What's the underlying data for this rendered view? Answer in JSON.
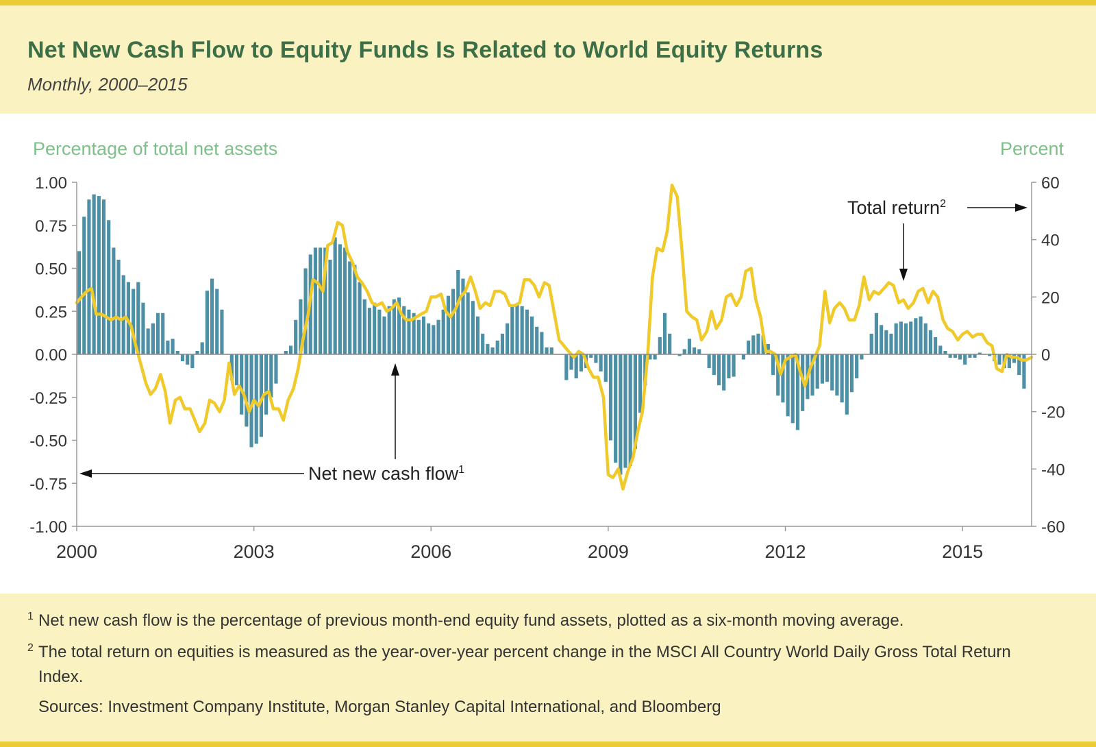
{
  "header": {
    "title": "Net New Cash Flow to Equity Funds Is Related to World Equity Returns",
    "subtitle": "Monthly, 2000–2015"
  },
  "colors": {
    "bar": "#4d8fa4",
    "line": "#f0c92a",
    "title": "#3c6e47",
    "axis_title": "#7fbf8a",
    "header_bg": "#faf2c0",
    "accent_bar": "#ebcc35"
  },
  "chart_data": {
    "type": "bar+line",
    "title": "Net New Cash Flow to Equity Funds Is Related to World Equity Returns",
    "subtitle": "Monthly, 2000–2015",
    "left_axis": {
      "label": "Percentage of total net assets",
      "range": [
        -1.0,
        1.0
      ],
      "ticks": [
        "1.00",
        "0.75",
        "0.50",
        "0.25",
        "0.00",
        "-0.25",
        "-0.50",
        "-0.75",
        "-1.00"
      ]
    },
    "right_axis": {
      "label": "Percent",
      "range": [
        -60,
        60
      ],
      "ticks": [
        "60",
        "40",
        "20",
        "0",
        "-20",
        "-40",
        "-60"
      ]
    },
    "x_axis": {
      "start": 2000.0,
      "end": 2016.17,
      "ticks": [
        "2000",
        "2003",
        "2006",
        "2009",
        "2012",
        "2015"
      ]
    },
    "series": [
      {
        "name": "Net new cash flow",
        "axis": "left",
        "type": "bar",
        "start": 2000.0,
        "step_months": 1,
        "values": [
          0.6,
          0.8,
          0.9,
          0.93,
          0.92,
          0.9,
          0.78,
          0.62,
          0.55,
          0.46,
          0.42,
          0.38,
          0.42,
          0.3,
          0.15,
          0.18,
          0.24,
          0.24,
          0.08,
          0.09,
          0.02,
          -0.04,
          -0.06,
          -0.08,
          0.02,
          0.07,
          0.37,
          0.44,
          0.38,
          0.26,
          0.0,
          -0.15,
          -0.18,
          -0.35,
          -0.42,
          -0.54,
          -0.52,
          -0.48,
          -0.35,
          -0.25,
          -0.17,
          0.0,
          0.02,
          0.05,
          0.2,
          0.32,
          0.5,
          0.58,
          0.62,
          0.62,
          0.62,
          0.55,
          0.68,
          0.64,
          0.62,
          0.54,
          0.52,
          0.42,
          0.32,
          0.27,
          0.3,
          0.26,
          0.22,
          0.28,
          0.32,
          0.33,
          0.28,
          0.26,
          0.24,
          0.2,
          0.22,
          0.18,
          0.17,
          0.2,
          0.26,
          0.34,
          0.38,
          0.49,
          0.44,
          0.36,
          0.31,
          0.22,
          0.12,
          0.06,
          0.04,
          0.08,
          0.12,
          0.18,
          0.28,
          0.29,
          0.28,
          0.26,
          0.22,
          0.16,
          0.13,
          0.04,
          0.04,
          0.0,
          0.0,
          -0.15,
          -0.09,
          -0.14,
          -0.1,
          -0.08,
          -0.02,
          -0.05,
          -0.1,
          -0.16,
          -0.5,
          -0.63,
          -0.7,
          -0.66,
          -0.65,
          -0.55,
          -0.34,
          -0.18,
          -0.03,
          -0.03,
          0.1,
          0.24,
          0.12,
          0.0,
          -0.01,
          0.03,
          0.09,
          0.04,
          0.03,
          0.0,
          -0.08,
          -0.12,
          -0.18,
          -0.21,
          -0.14,
          -0.13,
          0.0,
          -0.03,
          0.08,
          0.11,
          0.12,
          0.11,
          0.06,
          -0.12,
          -0.24,
          -0.28,
          -0.36,
          -0.4,
          -0.44,
          -0.33,
          -0.26,
          -0.24,
          -0.2,
          -0.17,
          -0.16,
          -0.21,
          -0.24,
          -0.28,
          -0.35,
          -0.22,
          -0.14,
          -0.03,
          0.0,
          0.12,
          0.24,
          0.17,
          0.14,
          0.12,
          0.18,
          0.19,
          0.18,
          0.19,
          0.21,
          0.22,
          0.18,
          0.14,
          0.1,
          0.05,
          0.02,
          -0.02,
          -0.02,
          -0.03,
          -0.06,
          -0.02,
          -0.02,
          0.01,
          0.0,
          -0.01,
          -0.04,
          -0.06,
          -0.08,
          -0.08,
          -0.05,
          -0.12,
          -0.2
        ]
      },
      {
        "name": "Total return",
        "axis": "right",
        "type": "line",
        "points": [
          [
            2000.0,
            18
          ],
          [
            2000.08,
            20
          ],
          [
            2000.17,
            22
          ],
          [
            2000.25,
            23
          ],
          [
            2000.33,
            14
          ],
          [
            2000.42,
            14
          ],
          [
            2000.5,
            13
          ],
          [
            2000.58,
            12
          ],
          [
            2000.67,
            13
          ],
          [
            2000.75,
            12
          ],
          [
            2000.83,
            13
          ],
          [
            2000.92,
            10
          ],
          [
            2001.0,
            3
          ],
          [
            2001.08,
            -3
          ],
          [
            2001.17,
            -10
          ],
          [
            2001.25,
            -14
          ],
          [
            2001.33,
            -12
          ],
          [
            2001.42,
            -7
          ],
          [
            2001.5,
            -13
          ],
          [
            2001.58,
            -24
          ],
          [
            2001.67,
            -16
          ],
          [
            2001.75,
            -15
          ],
          [
            2001.83,
            -19
          ],
          [
            2001.92,
            -19
          ],
          [
            2002.0,
            -23
          ],
          [
            2002.08,
            -27
          ],
          [
            2002.17,
            -24
          ],
          [
            2002.25,
            -16
          ],
          [
            2002.33,
            -17
          ],
          [
            2002.42,
            -20
          ],
          [
            2002.5,
            -16
          ],
          [
            2002.58,
            -3
          ],
          [
            2002.67,
            -14
          ],
          [
            2002.75,
            -11
          ],
          [
            2002.83,
            -14
          ],
          [
            2002.92,
            -20
          ],
          [
            2003.0,
            -16
          ],
          [
            2003.08,
            -18
          ],
          [
            2003.17,
            -14
          ],
          [
            2003.25,
            -13
          ],
          [
            2003.33,
            -19
          ],
          [
            2003.42,
            -19
          ],
          [
            2003.5,
            -23
          ],
          [
            2003.58,
            -16
          ],
          [
            2003.67,
            -12
          ],
          [
            2003.75,
            -5
          ],
          [
            2003.83,
            5
          ],
          [
            2003.92,
            14
          ],
          [
            2004.0,
            26
          ],
          [
            2004.08,
            25
          ],
          [
            2004.17,
            22
          ],
          [
            2004.25,
            38
          ],
          [
            2004.33,
            39
          ],
          [
            2004.42,
            46
          ],
          [
            2004.5,
            45
          ],
          [
            2004.58,
            36
          ],
          [
            2004.67,
            32
          ],
          [
            2004.75,
            27
          ],
          [
            2004.83,
            25
          ],
          [
            2004.92,
            22
          ],
          [
            2005.0,
            18
          ],
          [
            2005.08,
            17
          ],
          [
            2005.17,
            18
          ],
          [
            2005.25,
            15
          ],
          [
            2005.33,
            16
          ],
          [
            2005.42,
            18
          ],
          [
            2005.5,
            14
          ],
          [
            2005.58,
            12
          ],
          [
            2005.67,
            12
          ],
          [
            2005.75,
            13
          ],
          [
            2005.83,
            14
          ],
          [
            2005.92,
            15
          ],
          [
            2006.0,
            20
          ],
          [
            2006.08,
            20
          ],
          [
            2006.17,
            21
          ],
          [
            2006.25,
            15
          ],
          [
            2006.33,
            13
          ],
          [
            2006.42,
            16
          ],
          [
            2006.5,
            20
          ],
          [
            2006.58,
            22
          ],
          [
            2006.67,
            27
          ],
          [
            2006.75,
            22
          ],
          [
            2006.83,
            16
          ],
          [
            2006.92,
            18
          ],
          [
            2007.0,
            17
          ],
          [
            2007.08,
            22
          ],
          [
            2007.17,
            22
          ],
          [
            2007.25,
            21
          ],
          [
            2007.33,
            17
          ],
          [
            2007.42,
            17
          ],
          [
            2007.5,
            18
          ],
          [
            2007.58,
            26
          ],
          [
            2007.67,
            26
          ],
          [
            2007.75,
            24
          ],
          [
            2007.83,
            20
          ],
          [
            2007.92,
            25
          ],
          [
            2008.0,
            24
          ],
          [
            2008.08,
            15
          ],
          [
            2008.17,
            5
          ],
          [
            2008.25,
            3
          ],
          [
            2008.33,
            1
          ],
          [
            2008.42,
            -1
          ],
          [
            2008.5,
            1
          ],
          [
            2008.58,
            0
          ],
          [
            2008.67,
            -5
          ],
          [
            2008.75,
            -8
          ],
          [
            2008.83,
            -8
          ],
          [
            2008.92,
            -15
          ],
          [
            2009.0,
            -42
          ],
          [
            2009.08,
            -43
          ],
          [
            2009.17,
            -40
          ],
          [
            2009.25,
            -47
          ],
          [
            2009.33,
            -41
          ],
          [
            2009.42,
            -36
          ],
          [
            2009.5,
            -27
          ],
          [
            2009.58,
            -20
          ],
          [
            2009.67,
            0
          ],
          [
            2009.75,
            27
          ],
          [
            2009.83,
            37
          ],
          [
            2009.92,
            36
          ],
          [
            2010.0,
            43
          ],
          [
            2010.08,
            59
          ],
          [
            2010.17,
            55
          ],
          [
            2010.25,
            36
          ],
          [
            2010.33,
            15
          ],
          [
            2010.42,
            13
          ],
          [
            2010.5,
            12
          ],
          [
            2010.58,
            5
          ],
          [
            2010.67,
            8
          ],
          [
            2010.75,
            15
          ],
          [
            2010.83,
            9
          ],
          [
            2010.92,
            12
          ],
          [
            2011.0,
            20
          ],
          [
            2011.08,
            21
          ],
          [
            2011.17,
            17
          ],
          [
            2011.25,
            20
          ],
          [
            2011.33,
            29
          ],
          [
            2011.42,
            30
          ],
          [
            2011.5,
            19
          ],
          [
            2011.58,
            13
          ],
          [
            2011.67,
            1
          ],
          [
            2011.75,
            1
          ],
          [
            2011.83,
            0
          ],
          [
            2011.92,
            -7
          ],
          [
            2012.0,
            -2
          ],
          [
            2012.08,
            -1
          ],
          [
            2012.17,
            0
          ],
          [
            2012.25,
            -6
          ],
          [
            2012.33,
            -11
          ],
          [
            2012.42,
            -5
          ],
          [
            2012.5,
            -1
          ],
          [
            2012.58,
            3
          ],
          [
            2012.67,
            22
          ],
          [
            2012.75,
            11
          ],
          [
            2012.83,
            16
          ],
          [
            2012.92,
            18
          ],
          [
            2013.0,
            16
          ],
          [
            2013.08,
            12
          ],
          [
            2013.17,
            12
          ],
          [
            2013.25,
            17
          ],
          [
            2013.33,
            27
          ],
          [
            2013.42,
            19
          ],
          [
            2013.5,
            22
          ],
          [
            2013.58,
            21
          ],
          [
            2013.67,
            23
          ],
          [
            2013.75,
            25
          ],
          [
            2013.83,
            24
          ],
          [
            2013.92,
            18
          ],
          [
            2014.0,
            19
          ],
          [
            2014.08,
            16
          ],
          [
            2014.17,
            18
          ],
          [
            2014.25,
            22
          ],
          [
            2014.33,
            23
          ],
          [
            2014.42,
            18
          ],
          [
            2014.5,
            22
          ],
          [
            2014.58,
            20
          ],
          [
            2014.67,
            12
          ],
          [
            2014.75,
            9
          ],
          [
            2014.83,
            8
          ],
          [
            2014.92,
            5
          ],
          [
            2015.0,
            7
          ],
          [
            2015.08,
            8
          ],
          [
            2015.17,
            6
          ],
          [
            2015.25,
            7
          ],
          [
            2015.33,
            7
          ],
          [
            2015.42,
            4
          ],
          [
            2015.5,
            3
          ],
          [
            2015.58,
            -5
          ],
          [
            2015.67,
            -6
          ],
          [
            2015.75,
            0
          ],
          [
            2015.83,
            -1
          ],
          [
            2015.92,
            -1
          ],
          [
            2016.0,
            -2
          ],
          [
            2016.08,
            -2
          ],
          [
            2016.17,
            -1
          ]
        ]
      }
    ],
    "annotations": [
      {
        "text": "Net new cash flow",
        "sup": "1"
      },
      {
        "text": "Total return",
        "sup": "2"
      }
    ]
  },
  "footnotes": [
    {
      "marker": "1",
      "text": "Net new cash flow is the percentage of previous month-end equity fund assets, plotted as a six-month moving average."
    },
    {
      "marker": "2",
      "text": "The total return on equities is measured as the year-over-year percent change in the MSCI All Country World Daily Gross Total Return Index."
    }
  ],
  "sources": "Sources: Investment Company Institute, Morgan Stanley Capital International, and Bloomberg"
}
